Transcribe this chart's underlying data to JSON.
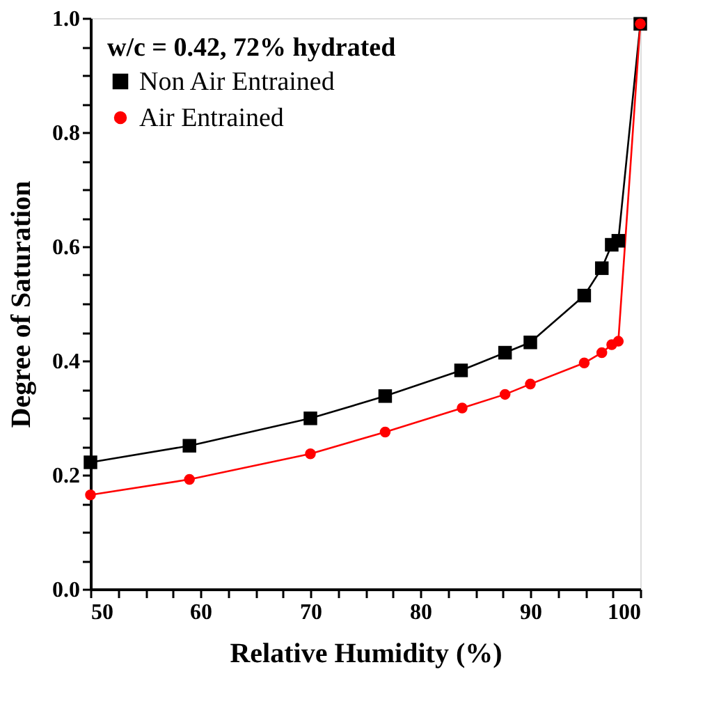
{
  "chart_data": {
    "type": "line",
    "xlabel": "Relative Humidity (%)",
    "ylabel": "Degree of Saturation",
    "legend_title": "w/c = 0.42, 72% hydrated",
    "series": [
      {
        "name": "Non Air Entrained",
        "color": "#000000",
        "marker": "square",
        "x": [
          50,
          59,
          70,
          76.8,
          83.7,
          87.7,
          90,
          94.9,
          96.5,
          97.4,
          98,
          100
        ],
        "values": [
          0.222,
          0.251,
          0.299,
          0.338,
          0.383,
          0.414,
          0.432,
          0.514,
          0.562,
          0.603,
          0.61,
          0.99
        ]
      },
      {
        "name": "Air Entrained",
        "color": "#ff0000",
        "marker": "circle",
        "x": [
          50,
          59,
          70,
          76.8,
          83.8,
          87.7,
          90,
          94.9,
          96.5,
          97.4,
          98,
          100
        ],
        "values": [
          0.165,
          0.192,
          0.237,
          0.275,
          0.317,
          0.341,
          0.359,
          0.396,
          0.414,
          0.428,
          0.434,
          0.99
        ]
      }
    ],
    "xlim": [
      50,
      100
    ],
    "ylim": [
      0,
      1
    ],
    "xticks": [
      50,
      {
        "value": 52.5,
        "label": null
      },
      {
        "value": 55,
        "label": null
      },
      {
        "value": 57.5,
        "label": null
      },
      60,
      {
        "value": 62.5,
        "label": null
      },
      {
        "value": 65,
        "label": null
      },
      {
        "value": 67.5,
        "label": null
      },
      70,
      {
        "value": 72.5,
        "label": null
      },
      {
        "value": 75,
        "label": null
      },
      {
        "value": 77.5,
        "label": null
      },
      80,
      {
        "value": 82.5,
        "label": null
      },
      {
        "value": 85,
        "label": null
      },
      {
        "value": 87.5,
        "label": null
      },
      90,
      {
        "value": 92.5,
        "label": null
      },
      {
        "value": 95,
        "label": null
      },
      {
        "value": 97.5,
        "label": null
      },
      100
    ],
    "yticks": [
      {
        "value": 0,
        "label": "0.0"
      },
      {
        "value": 0.05,
        "label": null
      },
      {
        "value": 0.1,
        "label": null
      },
      {
        "value": 0.15,
        "label": null
      },
      0.2,
      {
        "value": 0.25,
        "label": null
      },
      {
        "value": 0.3,
        "label": null
      },
      {
        "value": 0.35,
        "label": null
      },
      0.4,
      {
        "value": 0.45,
        "label": null
      },
      {
        "value": 0.5,
        "label": null
      },
      {
        "value": 0.55,
        "label": null
      },
      0.6,
      {
        "value": 0.65,
        "label": null
      },
      {
        "value": 0.7,
        "label": null
      },
      {
        "value": 0.75,
        "label": null
      },
      0.8,
      {
        "value": 0.85,
        "label": null
      },
      {
        "value": 0.9,
        "label": null
      },
      {
        "value": 0.95,
        "label": null
      },
      {
        "value": 1,
        "label": "1.0"
      }
    ],
    "grid": false,
    "legend": "top left",
    "line_style": "solid"
  }
}
